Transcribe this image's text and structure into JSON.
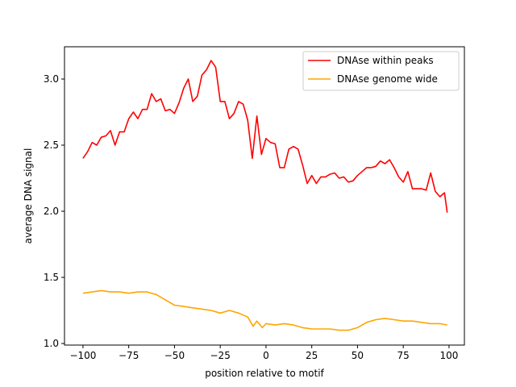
{
  "chart_data": {
    "type": "line",
    "title": "",
    "xlabel": "position relative to motif",
    "ylabel": "average DNA signal",
    "xlim": [
      -110.1,
      108.4
    ],
    "ylim": [
      0.988,
      3.244
    ],
    "xticks": [
      -100,
      -75,
      -50,
      -25,
      0,
      25,
      50,
      75,
      100
    ],
    "yticks": [
      1.0,
      1.5,
      2.0,
      2.5,
      3.0
    ],
    "xtick_labels": [
      "−100",
      "−75",
      "−50",
      "−25",
      "0",
      "25",
      "50",
      "75",
      "100"
    ],
    "ytick_labels": [
      "1.0",
      "1.5",
      "2.0",
      "2.5",
      "3.0"
    ],
    "grid": false,
    "legend_position": "top-right",
    "series": [
      {
        "name": "DNAse within peaks",
        "color": "#ff0000",
        "x": [
          -100,
          -97.5,
          -95,
          -92.5,
          -90,
          -87.5,
          -85,
          -82.5,
          -80,
          -77.5,
          -75,
          -72.5,
          -70,
          -67.5,
          -65,
          -62.5,
          -60,
          -57.5,
          -55,
          -52.5,
          -50,
          -47.5,
          -45,
          -42.5,
          -40,
          -37.5,
          -35,
          -32.5,
          -30,
          -27.5,
          -25,
          -22.5,
          -20,
          -17.5,
          -15,
          -12.5,
          -10,
          -7.5,
          -5,
          -2.5,
          0,
          2.5,
          5,
          7.5,
          10,
          12.5,
          15,
          17.5,
          20,
          22.5,
          25,
          27.5,
          30,
          32.5,
          35,
          37.5,
          40,
          42.5,
          45,
          47.5,
          50,
          52.5,
          55,
          57.5,
          60,
          62.5,
          65,
          67.5,
          70,
          72.5,
          75,
          77.5,
          80,
          82.5,
          85,
          87.5,
          90,
          92.5,
          95,
          97.5,
          99
        ],
        "y": [
          2.4,
          2.45,
          2.52,
          2.5,
          2.56,
          2.57,
          2.61,
          2.5,
          2.6,
          2.6,
          2.7,
          2.75,
          2.7,
          2.77,
          2.77,
          2.89,
          2.83,
          2.85,
          2.76,
          2.77,
          2.74,
          2.82,
          2.93,
          3.0,
          2.83,
          2.87,
          3.03,
          3.07,
          3.14,
          3.09,
          2.83,
          2.83,
          2.7,
          2.74,
          2.83,
          2.81,
          2.69,
          2.4,
          2.72,
          2.43,
          2.55,
          2.52,
          2.51,
          2.33,
          2.33,
          2.47,
          2.49,
          2.47,
          2.35,
          2.21,
          2.27,
          2.21,
          2.26,
          2.26,
          2.28,
          2.29,
          2.25,
          2.26,
          2.22,
          2.23,
          2.27,
          2.3,
          2.33,
          2.33,
          2.34,
          2.38,
          2.36,
          2.39,
          2.33,
          2.26,
          2.22,
          2.3,
          2.17,
          2.17,
          2.17,
          2.16,
          2.29,
          2.15,
          2.11,
          2.14,
          1.99
        ]
      },
      {
        "name": "DNAse genome wide",
        "color": "#ffa500",
        "x": [
          -100,
          -95,
          -90,
          -85,
          -80,
          -75,
          -70,
          -65,
          -60,
          -55,
          -50,
          -45,
          -40,
          -35,
          -30,
          -25,
          -20,
          -15,
          -10,
          -7,
          -5,
          -2,
          0,
          5,
          10,
          15,
          20,
          25,
          30,
          35,
          40,
          45,
          50,
          55,
          60,
          65,
          70,
          75,
          80,
          85,
          90,
          95,
          99
        ],
        "y": [
          1.38,
          1.39,
          1.4,
          1.39,
          1.39,
          1.38,
          1.39,
          1.39,
          1.37,
          1.33,
          1.29,
          1.28,
          1.27,
          1.26,
          1.25,
          1.23,
          1.25,
          1.23,
          1.2,
          1.13,
          1.17,
          1.12,
          1.15,
          1.14,
          1.15,
          1.14,
          1.12,
          1.11,
          1.11,
          1.11,
          1.1,
          1.1,
          1.12,
          1.16,
          1.18,
          1.19,
          1.18,
          1.17,
          1.17,
          1.16,
          1.15,
          1.15,
          1.14
        ]
      }
    ]
  }
}
